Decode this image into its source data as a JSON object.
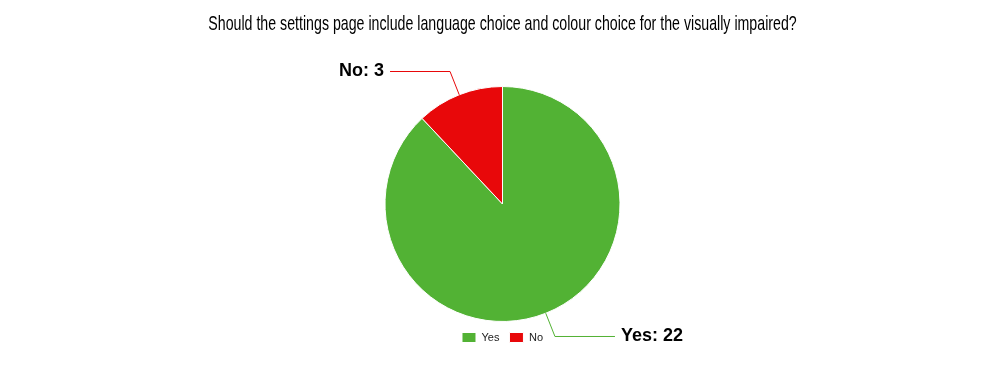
{
  "chart_data": {
    "type": "pie",
    "title": "Should the settings page include language choice and colour choice for the visually impaired?",
    "categories": [
      "Yes",
      "No"
    ],
    "values": [
      22,
      3
    ],
    "colors": [
      "#52b234",
      "#e8080a"
    ],
    "value_labels": [
      "Yes: 22",
      "No: 3"
    ],
    "legend": "bottom"
  }
}
